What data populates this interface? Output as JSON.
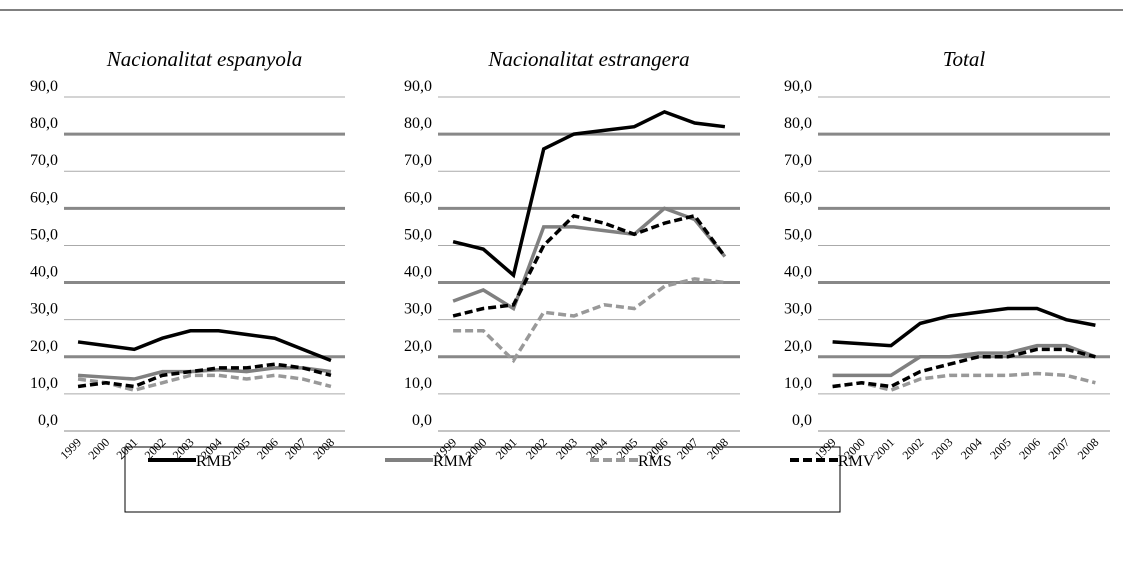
{
  "chart_data": [
    {
      "type": "line",
      "title": "Nacionalitat espanyola",
      "categories": [
        "1999",
        "2000",
        "2001",
        "2002",
        "2003",
        "2004",
        "2005",
        "2006",
        "2007",
        "2008"
      ],
      "ylim": [
        0,
        90
      ],
      "yticks": [
        {
          "value": 0,
          "label": "0,0"
        },
        {
          "value": 10,
          "label": "10,0"
        },
        {
          "value": 20,
          "label": "20,0"
        },
        {
          "value": 30,
          "label": "30,0"
        },
        {
          "value": 40,
          "label": "40,0"
        },
        {
          "value": 50,
          "label": "50,0"
        },
        {
          "value": 60,
          "label": "60,0"
        },
        {
          "value": 70,
          "label": "70,0"
        },
        {
          "value": 80,
          "label": "80,0"
        },
        {
          "value": 90,
          "label": "90,0"
        }
      ],
      "grid": true,
      "series": [
        {
          "name": "RMB",
          "color": "#000000",
          "dashed": false,
          "values": [
            24,
            23,
            22,
            25,
            27,
            27,
            26,
            25,
            22,
            19
          ]
        },
        {
          "name": "RMM",
          "color": "#808080",
          "dashed": false,
          "values": [
            15,
            14.5,
            14,
            16,
            16,
            16.5,
            16,
            17,
            17,
            16
          ]
        },
        {
          "name": "RMS",
          "color": "#999999",
          "dashed": true,
          "values": [
            14,
            13,
            11,
            13,
            15,
            15,
            14,
            15,
            14,
            12
          ]
        },
        {
          "name": "RMV",
          "color": "#000000",
          "dashed": true,
          "values": [
            12,
            13,
            12,
            15,
            16,
            17,
            17,
            18,
            17,
            15
          ]
        }
      ]
    },
    {
      "type": "line",
      "title": "Nacionalitat estrangera",
      "categories": [
        "1999",
        "2000",
        "2001",
        "2002",
        "2003",
        "2004",
        "2005",
        "2006",
        "2007",
        "2008"
      ],
      "ylim": [
        0,
        90
      ],
      "yticks": [
        {
          "value": 0,
          "label": "0,0"
        },
        {
          "value": 10,
          "label": "10,0"
        },
        {
          "value": 20,
          "label": "20,0"
        },
        {
          "value": 30,
          "label": "30,0"
        },
        {
          "value": 40,
          "label": "40,0"
        },
        {
          "value": 50,
          "label": "50,0"
        },
        {
          "value": 60,
          "label": "60,0"
        },
        {
          "value": 70,
          "label": "70,0"
        },
        {
          "value": 80,
          "label": "80,0"
        },
        {
          "value": 90,
          "label": "90,0"
        }
      ],
      "grid": true,
      "series": [
        {
          "name": "RMB",
          "color": "#000000",
          "dashed": false,
          "values": [
            51,
            49,
            42,
            76,
            80,
            81,
            82,
            86,
            83,
            82
          ]
        },
        {
          "name": "RMM",
          "color": "#808080",
          "dashed": false,
          "values": [
            35,
            38,
            33,
            55,
            55,
            54,
            53,
            60,
            57,
            47
          ]
        },
        {
          "name": "RMS",
          "color": "#999999",
          "dashed": true,
          "values": [
            27,
            27,
            19,
            32,
            31,
            34,
            33,
            39,
            41,
            40
          ]
        },
        {
          "name": "RMV",
          "color": "#000000",
          "dashed": true,
          "values": [
            31,
            33,
            34,
            50,
            58,
            56,
            53,
            56,
            58,
            47
          ]
        }
      ]
    },
    {
      "type": "line",
      "title": "Total",
      "categories": [
        "1999",
        "2000",
        "2001",
        "2002",
        "2003",
        "2004",
        "2005",
        "2006",
        "2007",
        "2008"
      ],
      "ylim": [
        0,
        90
      ],
      "yticks": [
        {
          "value": 0,
          "label": "0,0"
        },
        {
          "value": 10,
          "label": "10,0"
        },
        {
          "value": 20,
          "label": "20,0"
        },
        {
          "value": 30,
          "label": "30,0"
        },
        {
          "value": 40,
          "label": "40,0"
        },
        {
          "value": 50,
          "label": "50,0"
        },
        {
          "value": 60,
          "label": "60,0"
        },
        {
          "value": 70,
          "label": "70,0"
        },
        {
          "value": 80,
          "label": "80,0"
        },
        {
          "value": 90,
          "label": "90,0"
        }
      ],
      "grid": true,
      "series": [
        {
          "name": "RMB",
          "color": "#000000",
          "dashed": false,
          "values": [
            24,
            23.5,
            23,
            29,
            31,
            32,
            33,
            33,
            30,
            28.5
          ]
        },
        {
          "name": "RMM",
          "color": "#808080",
          "dashed": false,
          "values": [
            15,
            15,
            15,
            20,
            20,
            21,
            21,
            23,
            23,
            20
          ]
        },
        {
          "name": "RMS",
          "color": "#999999",
          "dashed": true,
          "values": [
            12,
            13,
            11,
            14,
            15,
            15,
            15,
            15.5,
            15,
            13
          ]
        },
        {
          "name": "RMV",
          "color": "#000000",
          "dashed": true,
          "values": [
            12,
            13,
            12,
            16,
            18,
            20,
            20,
            22,
            22,
            20
          ]
        }
      ]
    }
  ]
}
